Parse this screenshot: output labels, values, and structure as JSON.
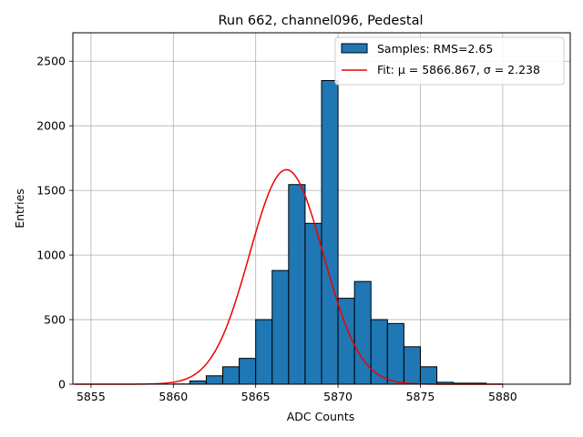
{
  "chart_data": {
    "type": "bar",
    "title": "Run 662, channel096, Pedestal",
    "xlabel": "ADC Counts",
    "ylabel": "Entries",
    "xlim": [
      5853.9,
      5884.1
    ],
    "ylim": [
      0,
      2720
    ],
    "xticks": [
      5855,
      5860,
      5865,
      5870,
      5875,
      5880
    ],
    "yticks": [
      0,
      500,
      1000,
      1500,
      2000,
      2500
    ],
    "grid": true,
    "legend_position": "top-right",
    "histogram": {
      "name": "Samples: RMS=2.65",
      "bin_width": 1,
      "bin_edges_start": 5854,
      "values": [
        0,
        0,
        0,
        0,
        0,
        0,
        2,
        25,
        65,
        135,
        200,
        500,
        880,
        1545,
        1245,
        2350,
        665,
        795,
        500,
        470,
        290,
        135,
        15,
        8,
        8,
        1,
        0,
        0,
        0,
        0
      ],
      "fill_color": "#1f77b4",
      "edge_color": "#000000"
    },
    "fit": {
      "name": "Fit: μ = 5866.867, σ = 2.238",
      "mu": 5866.867,
      "sigma": 2.238,
      "amplitude": 1660,
      "x_range": [
        5854,
        5880
      ],
      "color": "#ee0000"
    }
  }
}
